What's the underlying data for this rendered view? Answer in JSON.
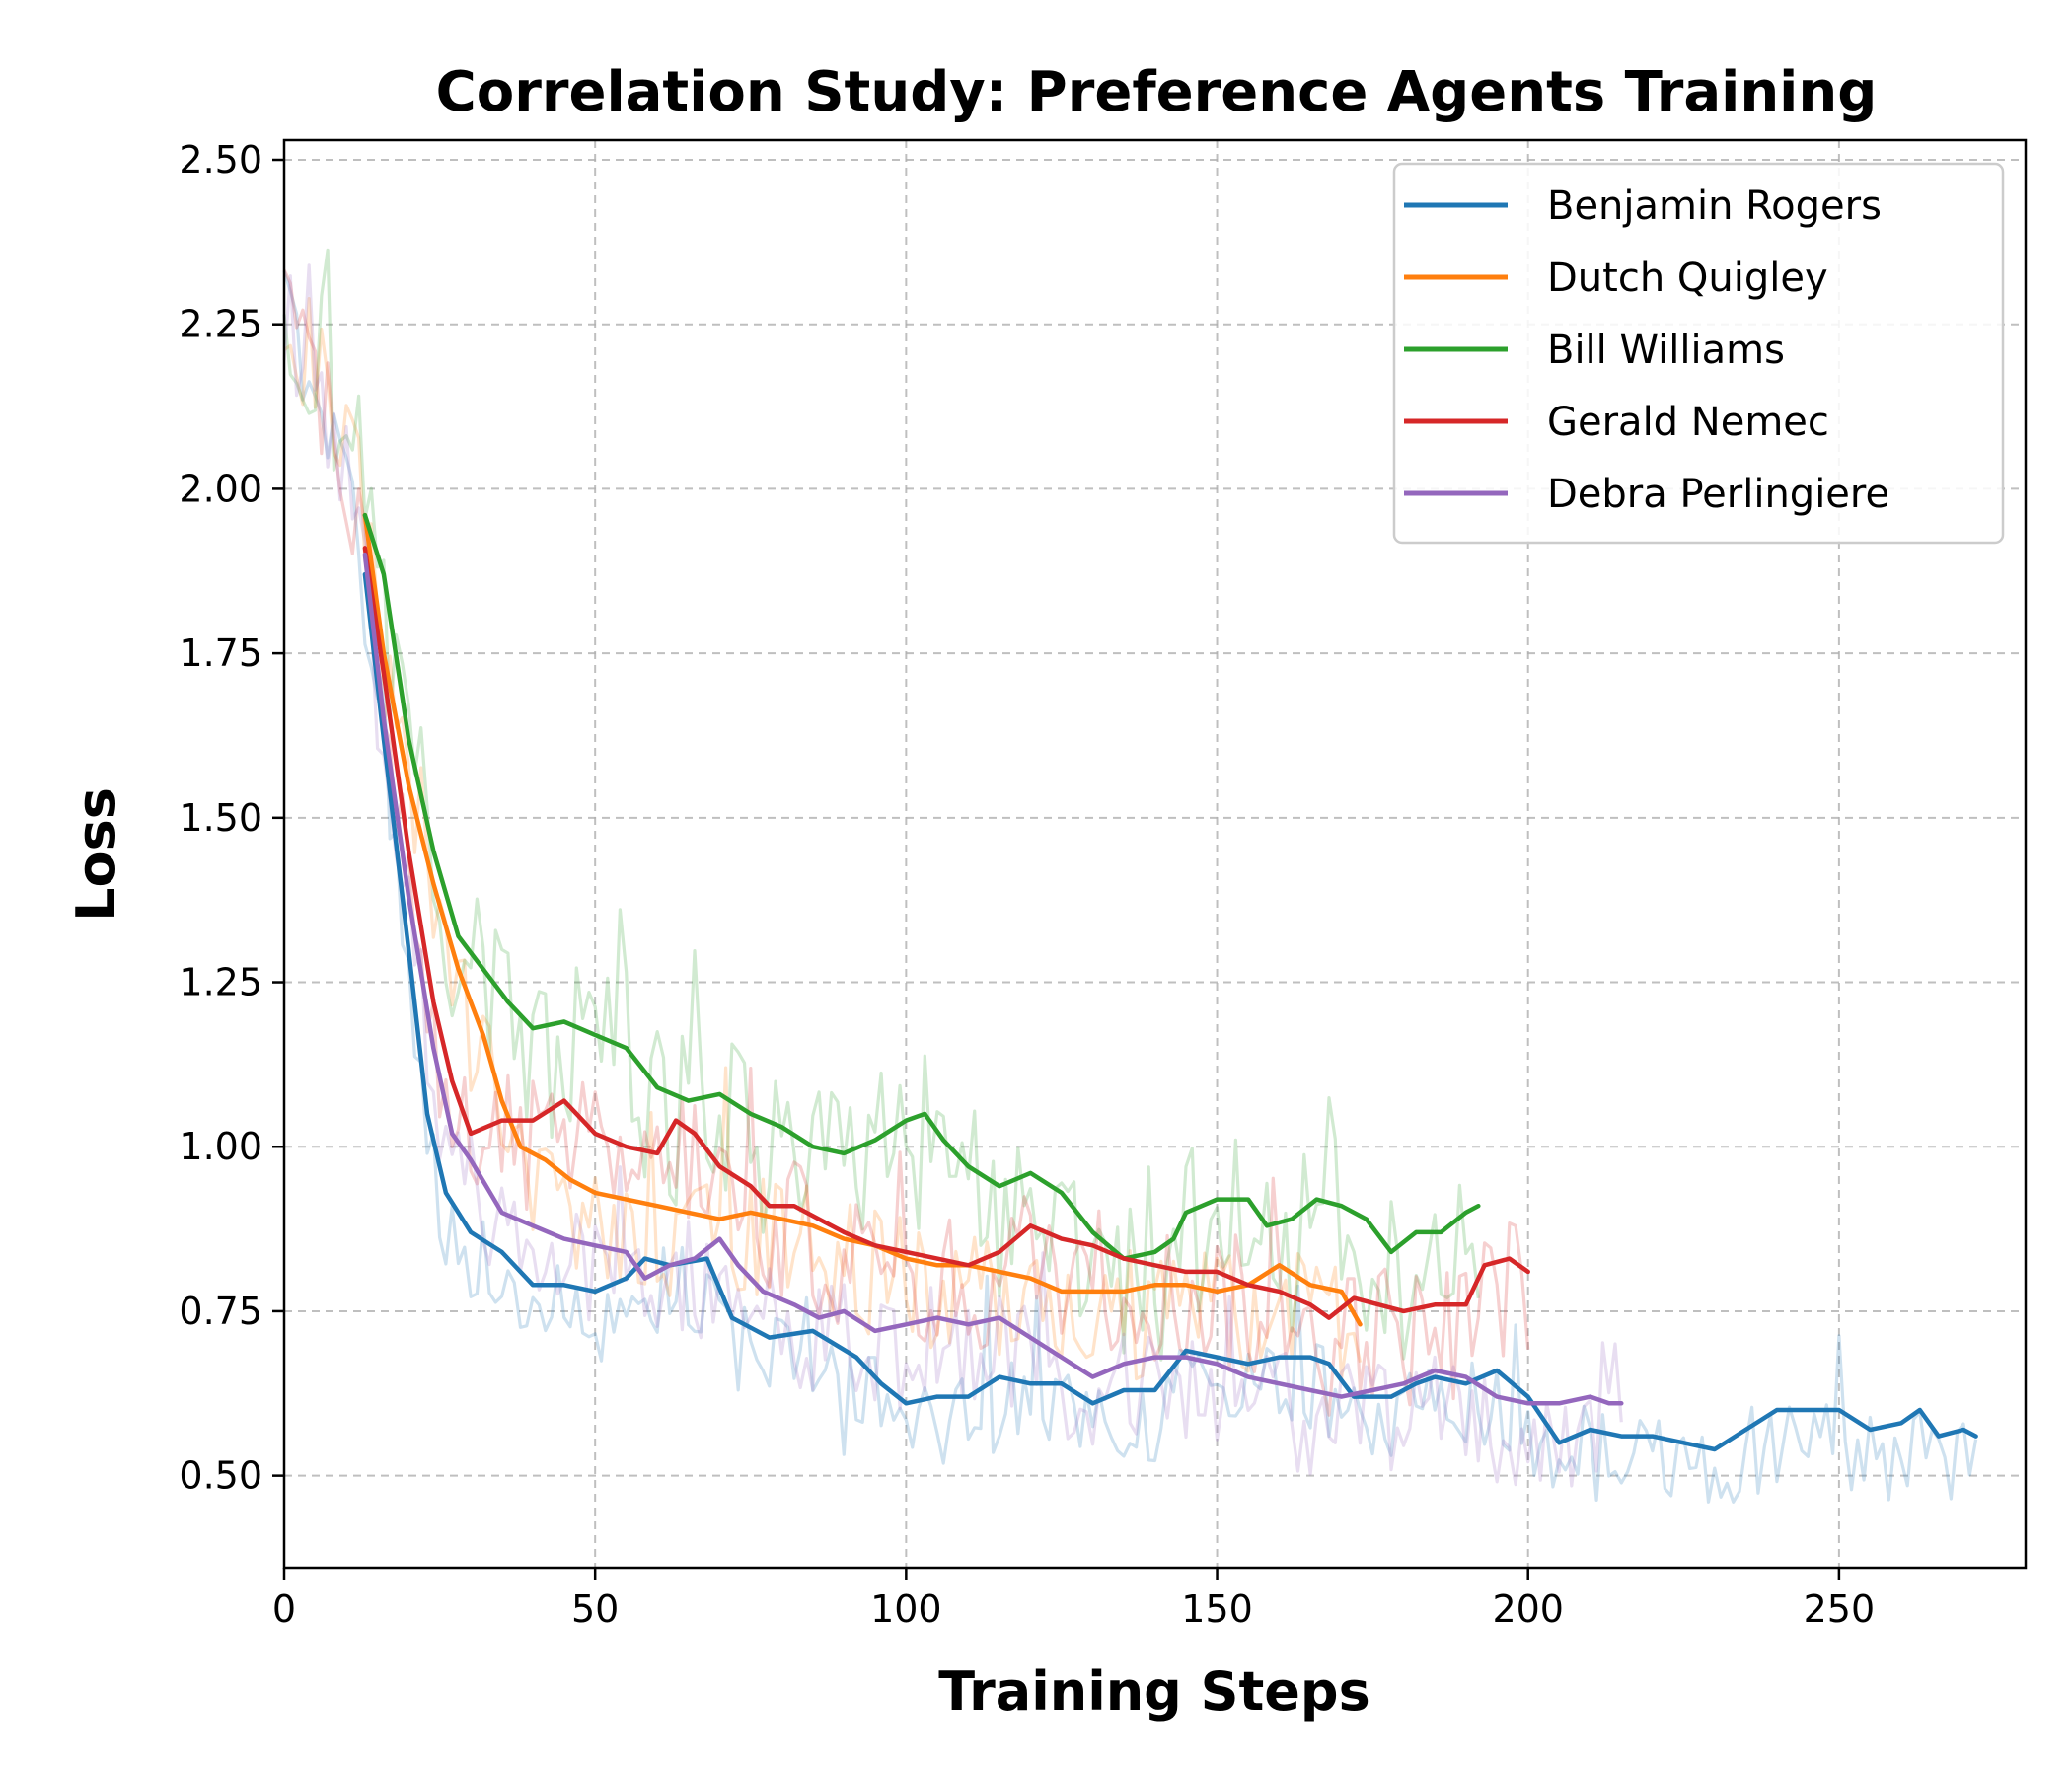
{
  "chart_data": {
    "type": "line",
    "title": "Correlation Study: Preference Agents Training",
    "xlabel": "Training Steps",
    "ylabel": "Loss",
    "xlim": [
      0,
      280
    ],
    "ylim": [
      0.36,
      2.53
    ],
    "xticks": [
      0,
      50,
      100,
      150,
      200,
      250
    ],
    "yticks": [
      0.5,
      0.75,
      1.0,
      1.25,
      1.5,
      1.75,
      2.0,
      2.25,
      2.5
    ],
    "xtick_labels": [
      "0",
      "50",
      "100",
      "150",
      "200",
      "250"
    ],
    "ytick_labels": [
      "0.50",
      "0.75",
      "1.00",
      "1.25",
      "1.50",
      "1.75",
      "2.00",
      "2.25",
      "2.50"
    ],
    "grid": true,
    "legend_position": "top-right",
    "smoothing_note": "faint raw curves start at step 0; bold moving-average curves start at step 13",
    "series": [
      {
        "name": "Benjamin Rogers",
        "color": "#1f77b4",
        "raw_start": 0,
        "raw_end": 272,
        "raw_noise": 0.07,
        "smoothed": [
          [
            13,
            1.87
          ],
          [
            16,
            1.62
          ],
          [
            20,
            1.3
          ],
          [
            23,
            1.05
          ],
          [
            26,
            0.93
          ],
          [
            30,
            0.87
          ],
          [
            35,
            0.84
          ],
          [
            40,
            0.79
          ],
          [
            45,
            0.79
          ],
          [
            50,
            0.78
          ],
          [
            55,
            0.8
          ],
          [
            58,
            0.83
          ],
          [
            62,
            0.82
          ],
          [
            68,
            0.83
          ],
          [
            72,
            0.74
          ],
          [
            78,
            0.71
          ],
          [
            85,
            0.72
          ],
          [
            92,
            0.68
          ],
          [
            96,
            0.64
          ],
          [
            100,
            0.61
          ],
          [
            105,
            0.62
          ],
          [
            110,
            0.62
          ],
          [
            115,
            0.65
          ],
          [
            120,
            0.64
          ],
          [
            125,
            0.64
          ],
          [
            130,
            0.61
          ],
          [
            135,
            0.63
          ],
          [
            140,
            0.63
          ],
          [
            145,
            0.69
          ],
          [
            150,
            0.68
          ],
          [
            155,
            0.67
          ],
          [
            160,
            0.68
          ],
          [
            165,
            0.68
          ],
          [
            168,
            0.67
          ],
          [
            172,
            0.62
          ],
          [
            178,
            0.62
          ],
          [
            182,
            0.64
          ],
          [
            185,
            0.65
          ],
          [
            190,
            0.64
          ],
          [
            195,
            0.66
          ],
          [
            200,
            0.62
          ],
          [
            205,
            0.55
          ],
          [
            210,
            0.57
          ],
          [
            215,
            0.56
          ],
          [
            220,
            0.56
          ],
          [
            225,
            0.55
          ],
          [
            230,
            0.54
          ],
          [
            235,
            0.57
          ],
          [
            240,
            0.6
          ],
          [
            245,
            0.6
          ],
          [
            250,
            0.6
          ],
          [
            255,
            0.57
          ],
          [
            260,
            0.58
          ],
          [
            263,
            0.6
          ],
          [
            266,
            0.56
          ],
          [
            270,
            0.57
          ],
          [
            272,
            0.56
          ]
        ]
      },
      {
        "name": "Dutch Quigley",
        "color": "#ff7f0e",
        "raw_start": 0,
        "raw_end": 173,
        "raw_noise": 0.1,
        "smoothed": [
          [
            13,
            1.96
          ],
          [
            16,
            1.75
          ],
          [
            20,
            1.55
          ],
          [
            24,
            1.4
          ],
          [
            28,
            1.27
          ],
          [
            32,
            1.17
          ],
          [
            35,
            1.07
          ],
          [
            38,
            1.0
          ],
          [
            42,
            0.98
          ],
          [
            46,
            0.95
          ],
          [
            50,
            0.93
          ],
          [
            55,
            0.92
          ],
          [
            60,
            0.91
          ],
          [
            65,
            0.9
          ],
          [
            70,
            0.89
          ],
          [
            75,
            0.9
          ],
          [
            80,
            0.89
          ],
          [
            85,
            0.88
          ],
          [
            90,
            0.86
          ],
          [
            95,
            0.85
          ],
          [
            100,
            0.83
          ],
          [
            105,
            0.82
          ],
          [
            110,
            0.82
          ],
          [
            115,
            0.81
          ],
          [
            120,
            0.8
          ],
          [
            125,
            0.78
          ],
          [
            130,
            0.78
          ],
          [
            135,
            0.78
          ],
          [
            140,
            0.79
          ],
          [
            145,
            0.79
          ],
          [
            150,
            0.78
          ],
          [
            155,
            0.79
          ],
          [
            160,
            0.82
          ],
          [
            165,
            0.79
          ],
          [
            170,
            0.78
          ],
          [
            173,
            0.73
          ]
        ]
      },
      {
        "name": "Bill Williams",
        "color": "#2ca02c",
        "raw_start": 0,
        "raw_end": 192,
        "raw_noise": 0.14,
        "smoothed": [
          [
            13,
            1.96
          ],
          [
            16,
            1.87
          ],
          [
            20,
            1.62
          ],
          [
            24,
            1.45
          ],
          [
            28,
            1.32
          ],
          [
            32,
            1.27
          ],
          [
            36,
            1.22
          ],
          [
            40,
            1.18
          ],
          [
            45,
            1.19
          ],
          [
            50,
            1.17
          ],
          [
            55,
            1.15
          ],
          [
            60,
            1.09
          ],
          [
            65,
            1.07
          ],
          [
            70,
            1.08
          ],
          [
            75,
            1.05
          ],
          [
            80,
            1.03
          ],
          [
            85,
            1.0
          ],
          [
            90,
            0.99
          ],
          [
            95,
            1.01
          ],
          [
            100,
            1.04
          ],
          [
            103,
            1.05
          ],
          [
            106,
            1.01
          ],
          [
            110,
            0.97
          ],
          [
            115,
            0.94
          ],
          [
            120,
            0.96
          ],
          [
            125,
            0.93
          ],
          [
            130,
            0.87
          ],
          [
            135,
            0.83
          ],
          [
            140,
            0.84
          ],
          [
            143,
            0.86
          ],
          [
            145,
            0.9
          ],
          [
            150,
            0.92
          ],
          [
            155,
            0.92
          ],
          [
            158,
            0.88
          ],
          [
            162,
            0.89
          ],
          [
            166,
            0.92
          ],
          [
            170,
            0.91
          ],
          [
            174,
            0.89
          ],
          [
            178,
            0.84
          ],
          [
            182,
            0.87
          ],
          [
            186,
            0.87
          ],
          [
            190,
            0.9
          ],
          [
            192,
            0.91
          ]
        ]
      },
      {
        "name": "Gerald Nemec",
        "color": "#d62728",
        "raw_start": 0,
        "raw_end": 200,
        "raw_noise": 0.11,
        "smoothed": [
          [
            13,
            1.91
          ],
          [
            16,
            1.72
          ],
          [
            20,
            1.45
          ],
          [
            24,
            1.22
          ],
          [
            27,
            1.1
          ],
          [
            30,
            1.02
          ],
          [
            35,
            1.04
          ],
          [
            40,
            1.04
          ],
          [
            45,
            1.07
          ],
          [
            50,
            1.02
          ],
          [
            55,
            1.0
          ],
          [
            60,
            0.99
          ],
          [
            63,
            1.04
          ],
          [
            66,
            1.02
          ],
          [
            70,
            0.97
          ],
          [
            75,
            0.94
          ],
          [
            78,
            0.91
          ],
          [
            82,
            0.91
          ],
          [
            86,
            0.89
          ],
          [
            90,
            0.87
          ],
          [
            95,
            0.85
          ],
          [
            100,
            0.84
          ],
          [
            105,
            0.83
          ],
          [
            110,
            0.82
          ],
          [
            115,
            0.84
          ],
          [
            120,
            0.88
          ],
          [
            125,
            0.86
          ],
          [
            130,
            0.85
          ],
          [
            135,
            0.83
          ],
          [
            140,
            0.82
          ],
          [
            145,
            0.81
          ],
          [
            150,
            0.81
          ],
          [
            155,
            0.79
          ],
          [
            160,
            0.78
          ],
          [
            165,
            0.76
          ],
          [
            168,
            0.74
          ],
          [
            172,
            0.77
          ],
          [
            176,
            0.76
          ],
          [
            180,
            0.75
          ],
          [
            185,
            0.76
          ],
          [
            190,
            0.76
          ],
          [
            193,
            0.82
          ],
          [
            197,
            0.83
          ],
          [
            200,
            0.81
          ]
        ]
      },
      {
        "name": "Debra Perlingiere",
        "color": "#9467bd",
        "raw_start": 0,
        "raw_end": 215,
        "raw_noise": 0.09,
        "smoothed": [
          [
            13,
            1.9
          ],
          [
            16,
            1.65
          ],
          [
            20,
            1.38
          ],
          [
            24,
            1.15
          ],
          [
            27,
            1.02
          ],
          [
            30,
            0.98
          ],
          [
            35,
            0.9
          ],
          [
            40,
            0.88
          ],
          [
            45,
            0.86
          ],
          [
            50,
            0.85
          ],
          [
            55,
            0.84
          ],
          [
            58,
            0.8
          ],
          [
            62,
            0.82
          ],
          [
            66,
            0.83
          ],
          [
            70,
            0.86
          ],
          [
            73,
            0.82
          ],
          [
            77,
            0.78
          ],
          [
            82,
            0.76
          ],
          [
            86,
            0.74
          ],
          [
            90,
            0.75
          ],
          [
            95,
            0.72
          ],
          [
            100,
            0.73
          ],
          [
            105,
            0.74
          ],
          [
            110,
            0.73
          ],
          [
            115,
            0.74
          ],
          [
            120,
            0.71
          ],
          [
            125,
            0.68
          ],
          [
            130,
            0.65
          ],
          [
            135,
            0.67
          ],
          [
            140,
            0.68
          ],
          [
            145,
            0.68
          ],
          [
            150,
            0.67
          ],
          [
            155,
            0.65
          ],
          [
            160,
            0.64
          ],
          [
            165,
            0.63
          ],
          [
            170,
            0.62
          ],
          [
            175,
            0.63
          ],
          [
            180,
            0.64
          ],
          [
            185,
            0.66
          ],
          [
            190,
            0.65
          ],
          [
            195,
            0.62
          ],
          [
            200,
            0.61
          ],
          [
            205,
            0.61
          ],
          [
            210,
            0.62
          ],
          [
            213,
            0.61
          ],
          [
            215,
            0.61
          ]
        ]
      }
    ]
  }
}
